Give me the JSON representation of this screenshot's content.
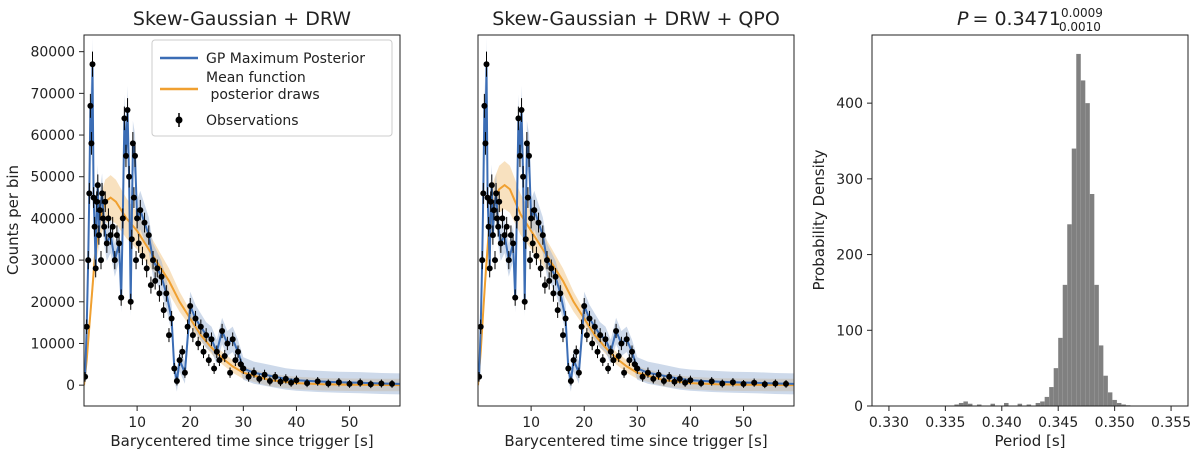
{
  "chart_data": [
    {
      "id": "drw",
      "type": "line",
      "title": "Skew-Gaussian + DRW",
      "xlabel": "Barycentered time since trigger [s]",
      "ylabel": "Counts per bin",
      "xlim": [
        0,
        59.5
      ],
      "ylim": [
        -5000,
        84000
      ],
      "xticks": [
        10,
        20,
        30,
        40,
        50
      ],
      "yticks": [
        0,
        10000,
        20000,
        30000,
        40000,
        50000,
        60000,
        70000,
        80000
      ],
      "legend": {
        "position": "top-right",
        "entries": [
          "GP Maximum Posterior",
          "Mean function\n posterior draws",
          "Observations"
        ]
      },
      "observations": {
        "x": [
          0.2,
          0.5,
          0.8,
          1.0,
          1.2,
          1.4,
          1.6,
          1.8,
          2.0,
          2.2,
          2.4,
          2.6,
          2.8,
          3.0,
          3.2,
          3.4,
          3.6,
          3.8,
          4.0,
          4.3,
          4.6,
          5.0,
          5.4,
          5.8,
          6.2,
          6.6,
          7.0,
          7.3,
          7.6,
          7.9,
          8.2,
          8.5,
          8.8,
          9.0,
          9.2,
          9.4,
          9.6,
          9.8,
          10.0,
          10.3,
          10.6,
          11.0,
          11.4,
          11.8,
          12.2,
          12.6,
          13.0,
          13.4,
          13.8,
          14.2,
          14.6,
          15.0,
          15.5,
          16.0,
          16.5,
          17.0,
          17.5,
          18.0,
          18.5,
          19.0,
          19.5,
          20.0,
          20.5,
          21.0,
          21.5,
          22.0,
          22.5,
          23.0,
          23.5,
          24.0,
          24.5,
          25.0,
          25.5,
          26.0,
          26.5,
          27.0,
          27.5,
          28.0,
          28.5,
          29.0,
          29.5,
          30.0,
          31.0,
          32.0,
          33.0,
          34.0,
          35.0,
          36.0,
          37.0,
          38.0,
          39.0,
          40.0,
          42.0,
          44.0,
          46.0,
          48.0,
          50.0,
          52.0,
          54.0,
          56.0,
          58.0
        ],
        "y": [
          2000,
          14000,
          30000,
          46000,
          67000,
          58000,
          77000,
          45000,
          38000,
          28000,
          44000,
          48000,
          36000,
          42000,
          30000,
          46000,
          40000,
          38000,
          44000,
          34000,
          40000,
          36000,
          38000,
          30000,
          36000,
          34000,
          21000,
          40000,
          64000,
          55000,
          66000,
          50000,
          20000,
          35000,
          58000,
          45000,
          55000,
          30000,
          40000,
          34000,
          42000,
          31000,
          39000,
          28000,
          36000,
          24000,
          30000,
          25000,
          28000,
          22000,
          26000,
          18000,
          22000,
          12000,
          16000,
          4000,
          1000,
          6000,
          8000,
          3000,
          14000,
          19000,
          12000,
          16000,
          10000,
          14000,
          8000,
          12000,
          6000,
          11000,
          4000,
          8000,
          6000,
          13000,
          7000,
          10000,
          3000,
          11000,
          6000,
          8000,
          5000,
          4000,
          2000,
          3000,
          1500,
          2500,
          1000,
          2000,
          800,
          1500,
          600,
          1200,
          500,
          900,
          400,
          700,
          300,
          600,
          200,
          400,
          300
        ]
      },
      "gp": {
        "x": [
          0.2,
          0.5,
          0.8,
          1.0,
          1.2,
          1.4,
          1.6,
          1.8,
          2.0,
          2.2,
          2.4,
          2.6,
          2.8,
          3.0,
          3.4,
          3.8,
          4.3,
          5.0,
          5.8,
          6.6,
          7.0,
          7.3,
          7.6,
          7.9,
          8.2,
          8.5,
          8.8,
          9.2,
          9.6,
          10.0,
          10.6,
          11.4,
          12.2,
          13.0,
          13.8,
          14.6,
          15.5,
          16.5,
          17.0,
          17.5,
          18.0,
          19.0,
          20.0,
          21.0,
          22.0,
          23.0,
          24.0,
          25.0,
          26.0,
          27.0,
          28.0,
          29.0,
          30.0,
          32.0,
          34.0,
          36.0,
          38.0,
          40.0,
          44.0,
          48.0,
          52.0,
          56.0,
          59.5
        ],
        "y": [
          2000,
          14000,
          30000,
          46000,
          67000,
          58000,
          77000,
          45000,
          38000,
          28000,
          44000,
          48000,
          36000,
          42000,
          46000,
          38000,
          34000,
          36000,
          30000,
          34000,
          21000,
          40000,
          64000,
          55000,
          66000,
          50000,
          20000,
          58000,
          55000,
          40000,
          42000,
          39000,
          36000,
          30000,
          28000,
          26000,
          22000,
          16000,
          4000,
          1000,
          6000,
          3000,
          19000,
          16000,
          14000,
          12000,
          11000,
          8000,
          13000,
          10000,
          11000,
          8000,
          4000,
          3000,
          2500,
          2000,
          1500,
          1200,
          900,
          700,
          600,
          400,
          300
        ]
      },
      "mean_draws": {
        "x": [
          0,
          0.5,
          1.0,
          1.5,
          2.0,
          3.0,
          4.0,
          5.0,
          6.0,
          7.0,
          8.0,
          10.0,
          12.0,
          14.0,
          16.0,
          18.0,
          20.0,
          22.0,
          24.0,
          26.0,
          28.0,
          30.0,
          35.0,
          40.0,
          45.0,
          50.0,
          55.0,
          59.5
        ],
        "y": [
          0,
          6000,
          14000,
          22000,
          30000,
          40000,
          44000,
          45000,
          44000,
          42000,
          40000,
          37000,
          33000,
          29000,
          25000,
          20000,
          16000,
          12000,
          9000,
          6500,
          4500,
          3000,
          1200,
          500,
          200,
          100,
          50,
          20
        ]
      }
    },
    {
      "id": "qpo",
      "type": "line",
      "title": "Skew-Gaussian + DRW + QPO",
      "xlabel": "Barycentered time since trigger [s]",
      "ylabel": "",
      "xlim": [
        0,
        59.5
      ],
      "ylim": [
        -5000,
        84000
      ],
      "xticks": [
        10,
        20,
        30,
        40,
        50
      ],
      "yticks": [],
      "observations_same_as": "drw",
      "mean_draws": {
        "x": [
          0,
          0.5,
          1.0,
          1.5,
          2.0,
          3.0,
          4.0,
          5.0,
          6.0,
          7.0,
          8.0,
          10.0,
          12.0,
          14.0,
          16.0,
          18.0,
          20.0,
          22.0,
          24.0,
          26.0,
          28.0,
          30.0,
          35.0,
          40.0,
          45.0,
          50.0,
          55.0,
          59.5
        ],
        "y": [
          0,
          8000,
          18000,
          28000,
          36000,
          44000,
          47000,
          48000,
          47000,
          44000,
          41000,
          37000,
          33000,
          29000,
          25000,
          20000,
          16000,
          12000,
          9000,
          6500,
          4500,
          3000,
          1200,
          500,
          200,
          100,
          50,
          20
        ]
      }
    },
    {
      "id": "period",
      "type": "bar",
      "title_prefix": "P",
      "title_value": "= 0.3471",
      "title_upper": "0.0009",
      "title_lower": "0.0010",
      "xlabel": "Period [s]",
      "ylabel": "Probability Density",
      "xlim": [
        0.3285,
        0.3565
      ],
      "ylim": [
        0,
        490
      ],
      "xticks": [
        "0.330",
        "0.335",
        "0.340",
        "0.345",
        "0.350",
        "0.355"
      ],
      "yticks": [
        0,
        100,
        200,
        300,
        400
      ],
      "bin_width": 0.0004,
      "bin_starts": [
        0.3358,
        0.3362,
        0.3366,
        0.337,
        0.3378,
        0.339,
        0.3402,
        0.3414,
        0.3422,
        0.343,
        0.3434,
        0.3438,
        0.3442,
        0.3446,
        0.345,
        0.3454,
        0.3458,
        0.3462,
        0.3466,
        0.347,
        0.3474,
        0.3478,
        0.3482,
        0.3486,
        0.349,
        0.3494,
        0.3498,
        0.3502,
        0.3506,
        0.351
      ],
      "values": [
        2,
        4,
        6,
        3,
        2,
        3,
        4,
        3,
        2,
        4,
        6,
        12,
        25,
        50,
        90,
        160,
        240,
        340,
        465,
        430,
        400,
        280,
        160,
        80,
        40,
        18,
        8,
        4,
        2,
        1
      ]
    }
  ]
}
